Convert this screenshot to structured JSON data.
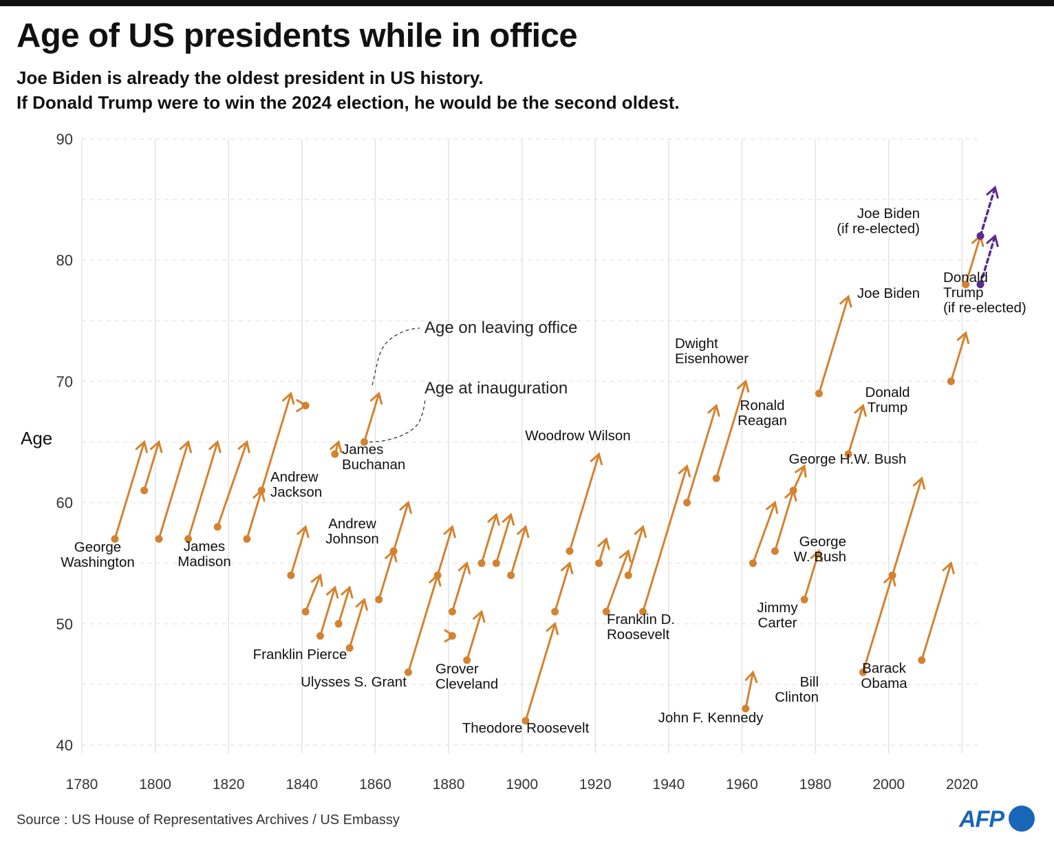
{
  "title": "Age of US presidents while in office",
  "subtitle_line1": "Joe Biden is already the oldest president in US history.",
  "subtitle_line2": "If Donald Trump were to win the 2024 election, he would be the second oldest.",
  "source": "Source : US House of Representatives Archives / US Embassy",
  "logo_text": "AFP",
  "colors": {
    "actual": "#d4822f",
    "projected": "#5b2a8c",
    "grid": "#e3e3e3",
    "text": "#111111"
  },
  "chart_data": {
    "type": "scatter",
    "ylabel": "Age",
    "xlim": [
      1780,
      2025
    ],
    "ylim": [
      40,
      90
    ],
    "xticks": [
      1780,
      1800,
      1820,
      1840,
      1860,
      1880,
      1900,
      1920,
      1940,
      1960,
      1980,
      2000,
      2020
    ],
    "yticks": [
      40,
      50,
      60,
      70,
      80,
      90
    ],
    "annotations": [
      {
        "text": "Age on leaving office"
      },
      {
        "text": "Age at inauguration"
      }
    ],
    "presidents": [
      {
        "label": [
          "George",
          "Washington"
        ],
        "start": 1789,
        "end": 1797,
        "age_start": 57,
        "age_end": 65
      },
      {
        "label": [],
        "start": 1797,
        "end": 1801,
        "age_start": 61,
        "age_end": 65
      },
      {
        "label": [],
        "start": 1801,
        "end": 1809,
        "age_start": 57,
        "age_end": 65
      },
      {
        "label": [
          "James",
          "Madison"
        ],
        "start": 1809,
        "end": 1817,
        "age_start": 57,
        "age_end": 65
      },
      {
        "label": [],
        "start": 1817,
        "end": 1825,
        "age_start": 58,
        "age_end": 65
      },
      {
        "label": [],
        "start": 1825,
        "end": 1829,
        "age_start": 57,
        "age_end": 61
      },
      {
        "label": [
          "Andrew",
          "Jackson"
        ],
        "start": 1829,
        "end": 1837,
        "age_start": 61,
        "age_end": 69
      },
      {
        "label": [],
        "start": 1837,
        "end": 1841,
        "age_start": 54,
        "age_end": 58
      },
      {
        "label": [],
        "start": 1841,
        "end": 1841.1,
        "age_start": 68,
        "age_end": 68
      },
      {
        "label": [],
        "start": 1841,
        "end": 1845,
        "age_start": 51,
        "age_end": 54
      },
      {
        "label": [],
        "start": 1845,
        "end": 1849,
        "age_start": 49,
        "age_end": 53
      },
      {
        "label": [],
        "start": 1849,
        "end": 1850,
        "age_start": 64,
        "age_end": 65
      },
      {
        "label": [],
        "start": 1850,
        "end": 1853,
        "age_start": 50,
        "age_end": 53
      },
      {
        "label": [
          "Franklin Pierce"
        ],
        "start": 1853,
        "end": 1857,
        "age_start": 48,
        "age_end": 52
      },
      {
        "label": [
          "James",
          "Buchanan"
        ],
        "start": 1857,
        "end": 1861,
        "age_start": 65,
        "age_end": 69
      },
      {
        "label": [],
        "start": 1861,
        "end": 1865,
        "age_start": 52,
        "age_end": 56
      },
      {
        "label": [
          "Andrew",
          "Johnson"
        ],
        "start": 1865,
        "end": 1869,
        "age_start": 56,
        "age_end": 60
      },
      {
        "label": [
          "Ulysses S. Grant"
        ],
        "start": 1869,
        "end": 1877,
        "age_start": 46,
        "age_end": 54
      },
      {
        "label": [],
        "start": 1877,
        "end": 1881,
        "age_start": 54,
        "age_end": 58
      },
      {
        "label": [],
        "start": 1881,
        "end": 1881.5,
        "age_start": 49,
        "age_end": 49
      },
      {
        "label": [],
        "start": 1881,
        "end": 1885,
        "age_start": 51,
        "age_end": 55
      },
      {
        "label": [
          "Grover",
          "Cleveland"
        ],
        "start": 1885,
        "end": 1889,
        "age_start": 47,
        "age_end": 51
      },
      {
        "label": [],
        "start": 1889,
        "end": 1893,
        "age_start": 55,
        "age_end": 59
      },
      {
        "label": [],
        "start": 1893,
        "end": 1897,
        "age_start": 55,
        "age_end": 59
      },
      {
        "label": [],
        "start": 1897,
        "end": 1901,
        "age_start": 54,
        "age_end": 58
      },
      {
        "label": [
          "Theodore Roosevelt"
        ],
        "start": 1901,
        "end": 1909,
        "age_start": 42,
        "age_end": 50
      },
      {
        "label": [],
        "start": 1909,
        "end": 1913,
        "age_start": 51,
        "age_end": 55
      },
      {
        "label": [
          "Woodrow Wilson"
        ],
        "start": 1913,
        "end": 1921,
        "age_start": 56,
        "age_end": 64
      },
      {
        "label": [],
        "start": 1921,
        "end": 1923,
        "age_start": 55,
        "age_end": 57
      },
      {
        "label": [],
        "start": 1923,
        "end": 1929,
        "age_start": 51,
        "age_end": 56
      },
      {
        "label": [],
        "start": 1929,
        "end": 1933,
        "age_start": 54,
        "age_end": 58
      },
      {
        "label": [
          "Franklin D.",
          "Roosevelt"
        ],
        "start": 1933,
        "end": 1945,
        "age_start": 51,
        "age_end": 63
      },
      {
        "label": [],
        "start": 1945,
        "end": 1953,
        "age_start": 60,
        "age_end": 68
      },
      {
        "label": [
          "Dwight",
          "Eisenhower"
        ],
        "start": 1953,
        "end": 1961,
        "age_start": 62,
        "age_end": 70
      },
      {
        "label": [
          "John F. Kennedy"
        ],
        "start": 1961,
        "end": 1963,
        "age_start": 43,
        "age_end": 46
      },
      {
        "label": [],
        "start": 1963,
        "end": 1969,
        "age_start": 55,
        "age_end": 60
      },
      {
        "label": [],
        "start": 1969,
        "end": 1974,
        "age_start": 56,
        "age_end": 61
      },
      {
        "label": [],
        "start": 1974,
        "end": 1977,
        "age_start": 61,
        "age_end": 63
      },
      {
        "label": [
          "Jimmy",
          "Carter"
        ],
        "start": 1977,
        "end": 1981,
        "age_start": 52,
        "age_end": 56
      },
      {
        "label": [
          "Ronald",
          "Reagan"
        ],
        "start": 1981,
        "end": 1989,
        "age_start": 69,
        "age_end": 77
      },
      {
        "label": [
          "George H.W. Bush"
        ],
        "start": 1989,
        "end": 1993,
        "age_start": 64,
        "age_end": 68
      },
      {
        "label": [
          "Bill",
          "Clinton"
        ],
        "start": 1993,
        "end": 2001,
        "age_start": 46,
        "age_end": 54
      },
      {
        "label": [
          "George",
          "W. Bush"
        ],
        "start": 2001,
        "end": 2009,
        "age_start": 54,
        "age_end": 62
      },
      {
        "label": [
          "Barack",
          "Obama"
        ],
        "start": 2009,
        "end": 2017,
        "age_start": 47,
        "age_end": 55
      },
      {
        "label": [
          "Donald",
          "Trump"
        ],
        "start": 2017,
        "end": 2021,
        "age_start": 70,
        "age_end": 74
      },
      {
        "label": [
          "Joe Biden"
        ],
        "start": 2021,
        "end": 2025,
        "age_start": 78,
        "age_end": 82
      }
    ],
    "projected": [
      {
        "label": [
          "Joe Biden",
          "(if re-elected)"
        ],
        "start": 2025,
        "end": 2029,
        "age_start": 82,
        "age_end": 86
      },
      {
        "label": [
          "Donald",
          "Trump",
          "(if re-elected)"
        ],
        "start": 2025,
        "end": 2029,
        "age_start": 78,
        "age_end": 82
      }
    ]
  }
}
